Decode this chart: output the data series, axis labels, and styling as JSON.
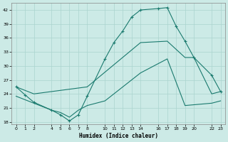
{
  "xlabel": "Humidex (Indice chaleur)",
  "bg_color": "#cceae6",
  "grid_color": "#aad4cf",
  "line_color": "#1a7a6e",
  "xlim": [
    -0.5,
    23.5
  ],
  "ylim": [
    17.5,
    43.5
  ],
  "yticks": [
    18,
    21,
    24,
    27,
    30,
    33,
    36,
    39,
    42
  ],
  "xticks": [
    0,
    1,
    2,
    4,
    5,
    6,
    7,
    8,
    10,
    11,
    12,
    13,
    14,
    16,
    17,
    18,
    19,
    20,
    22,
    23
  ],
  "line1_x": [
    0,
    1,
    2,
    4,
    5,
    6,
    7,
    8,
    10,
    11,
    12,
    13,
    14,
    16,
    17,
    18,
    19,
    20,
    22,
    23
  ],
  "line1_y": [
    25.5,
    23.8,
    22.2,
    20.5,
    19.5,
    18.2,
    19.5,
    23.5,
    31.5,
    35.0,
    37.5,
    40.5,
    42.0,
    42.3,
    42.5,
    38.5,
    35.3,
    31.8,
    28.0,
    24.5
  ],
  "line2_x": [
    0,
    2,
    8,
    14,
    17,
    19,
    20,
    22,
    23
  ],
  "line2_y": [
    25.5,
    24.0,
    25.5,
    35.0,
    35.3,
    31.8,
    31.8,
    24.0,
    24.5
  ],
  "line3_x": [
    0,
    2,
    4,
    5,
    6,
    7,
    8,
    10,
    14,
    17,
    19,
    22,
    23
  ],
  "line3_y": [
    23.5,
    22.0,
    20.5,
    20.0,
    19.0,
    20.5,
    21.5,
    22.5,
    28.5,
    31.5,
    21.5,
    22.0,
    22.5
  ]
}
